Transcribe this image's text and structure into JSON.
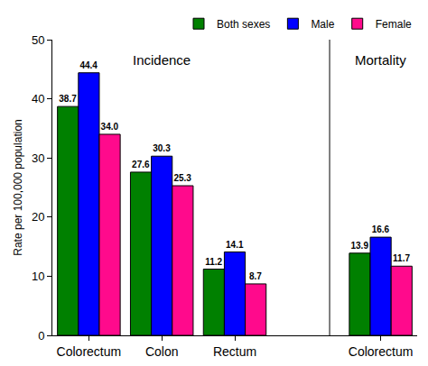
{
  "chart_data": {
    "type": "bar",
    "categories": [
      "Colorectum",
      "Colon",
      "Rectum",
      null,
      "Colorectum"
    ],
    "series": [
      {
        "name": "Both sexes",
        "color": "#008000",
        "values": [
          38.7,
          27.6,
          11.2,
          null,
          13.9
        ],
        "value_labels": [
          "38.7",
          "27.6",
          "11.2",
          null,
          "13.9"
        ]
      },
      {
        "name": "Male",
        "color": "#0000ff",
        "values": [
          44.4,
          30.3,
          14.1,
          null,
          16.6
        ],
        "value_labels": [
          "44.4",
          "30.3",
          "14.1",
          null,
          "16.6"
        ]
      },
      {
        "name": "Female",
        "color": "#ff0a8c",
        "values": [
          34.0,
          25.3,
          8.7,
          null,
          11.7
        ],
        "value_labels": [
          "34.0",
          "25.3",
          "8.7",
          null,
          "11.7"
        ]
      }
    ],
    "y_label": "Rate per 100,000 population",
    "annotations": [
      {
        "text": "Incidence"
      },
      {
        "text": "Mortality"
      }
    ],
    "ylim": [
      0,
      50
    ],
    "yticks": [
      0,
      10,
      20,
      30,
      40,
      50
    ],
    "grid": false,
    "legend": "top",
    "data_labels": true
  }
}
